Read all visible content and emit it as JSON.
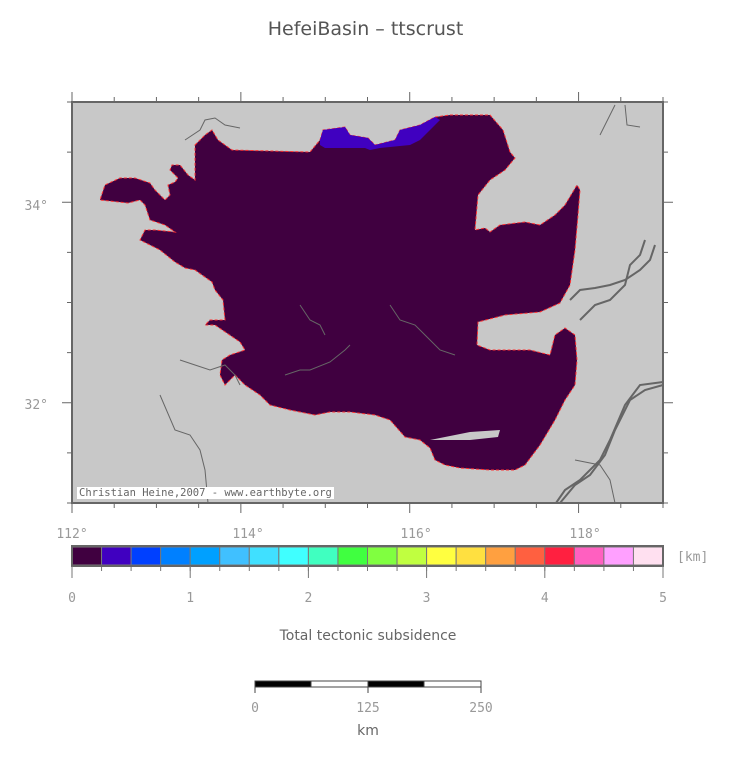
{
  "title": "HefeiBasin – ttscrust",
  "credit": "Christian Heine,2007 - www.earthbyte.org",
  "map": {
    "lon_labels": [
      "112°",
      "114°",
      "116°",
      "118°"
    ],
    "lat_labels": [
      "34°",
      "32°"
    ],
    "lon_range": [
      112,
      119
    ],
    "lat_range": [
      31,
      35
    ],
    "background_color": "#c8c8c8",
    "basin_color": "#400040",
    "deep_patch_color": "#4000c0"
  },
  "colorbar": {
    "unit": "[km]",
    "tick_labels": [
      "0",
      "1",
      "2",
      "3",
      "4",
      "5"
    ],
    "range": [
      0,
      5
    ],
    "colors": [
      "#400040",
      "#4000c0",
      "#0040ff",
      "#0080ff",
      "#00a0ff",
      "#40c0ff",
      "#40e0ff",
      "#40ffff",
      "#40ffc0",
      "#40ff40",
      "#80ff40",
      "#c0ff40",
      "#ffff40",
      "#ffe040",
      "#ffa040",
      "#ff6040",
      "#ff2040",
      "#ff60c0",
      "#ffa0ff",
      "#ffe0f0"
    ],
    "label": "Total tectonic subsidence"
  },
  "scalebar": {
    "tick_labels": [
      "0",
      "125",
      "250"
    ],
    "unit": "km"
  }
}
